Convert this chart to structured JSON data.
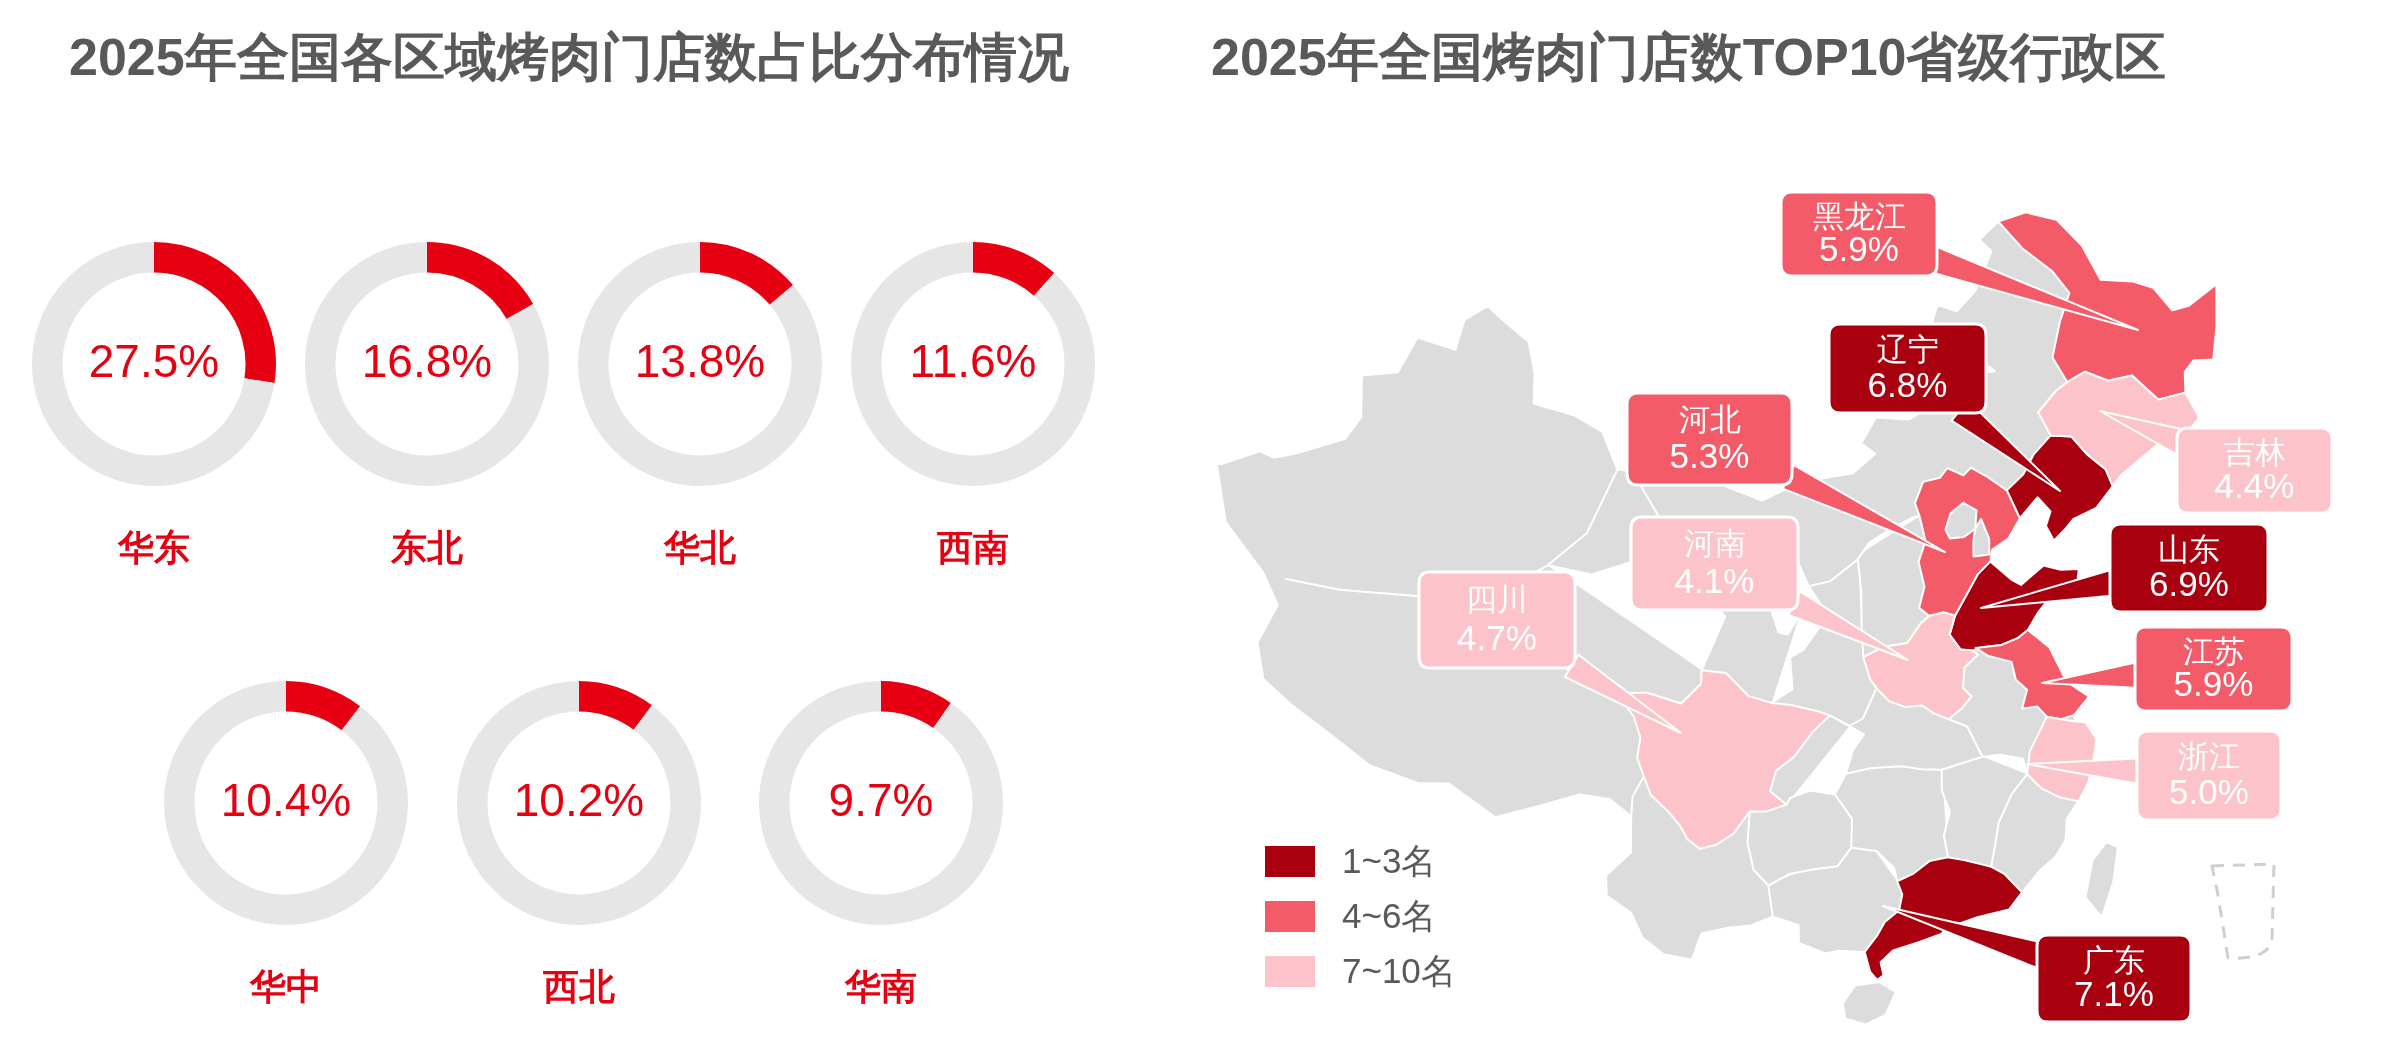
{
  "chart_data": [
    {
      "type": "other",
      "title": "2025年全国各区域烤肉门店数占比分布情况"
    },
    {
      "type": "donut",
      "title": "华东",
      "categories": [
        null,
        null
      ],
      "values": [
        27.5,
        72.5
      ],
      "colors": [
        "#e60012",
        "#e6e6e6"
      ],
      "value_labels": [
        "27.5%",
        null
      ]
    },
    {
      "type": "donut",
      "title": "东北",
      "categories": [
        null,
        null
      ],
      "values": [
        16.8,
        83.2
      ],
      "colors": [
        "#e60012",
        "#e6e6e6"
      ],
      "value_labels": [
        "16.8%",
        null
      ]
    },
    {
      "type": "donut",
      "title": "华北",
      "categories": [
        null,
        null
      ],
      "values": [
        13.8,
        86.2
      ],
      "colors": [
        "#e60012",
        "#e6e6e6"
      ],
      "value_labels": [
        "13.8%",
        null
      ]
    },
    {
      "type": "donut",
      "title": "西南",
      "categories": [
        null,
        null
      ],
      "values": [
        11.6,
        88.4
      ],
      "colors": [
        "#e60012",
        "#e6e6e6"
      ],
      "value_labels": [
        "11.6%",
        null
      ]
    },
    {
      "type": "donut",
      "title": "华中",
      "categories": [
        null,
        null
      ],
      "values": [
        10.4,
        89.6
      ],
      "colors": [
        "#e60012",
        "#e6e6e6"
      ],
      "value_labels": [
        "10.4%",
        null
      ]
    },
    {
      "type": "donut",
      "title": "西北",
      "categories": [
        null,
        null
      ],
      "values": [
        10.2,
        89.8
      ],
      "colors": [
        "#e60012",
        "#e6e6e6"
      ],
      "value_labels": [
        "10.2%",
        null
      ]
    },
    {
      "type": "donut",
      "title": "华南",
      "categories": [
        null,
        null
      ],
      "values": [
        9.7,
        90.3
      ],
      "colors": [
        "#e60012",
        "#e6e6e6"
      ],
      "value_labels": [
        "9.7%",
        null
      ]
    },
    {
      "type": "other",
      "title": "2025年全国烤肉门店数TOP10省级行政区",
      "legend": "bottom left",
      "categories": [
        "广东",
        "山东",
        "辽宁",
        "黑龙江",
        "江苏",
        "河北",
        "浙江",
        "四川",
        "吉林",
        "河南"
      ],
      "series": [
        {
          "name": "1~3名",
          "color": "#a8000f",
          "values": [
            7.1,
            6.9,
            6.8,
            null,
            null,
            null,
            null,
            null,
            null,
            null
          ],
          "value_labels": [
            "7.1%",
            "6.9%",
            "6.8%",
            null,
            null,
            null,
            null,
            null,
            null,
            null
          ]
        },
        {
          "name": "4~6名",
          "color": "#f45b69",
          "values": [
            null,
            null,
            null,
            5.9,
            5.9,
            5.3,
            null,
            null,
            null,
            null
          ],
          "value_labels": [
            null,
            null,
            null,
            "5.9%",
            "5.9%",
            "5.3%",
            null,
            null,
            null,
            null
          ]
        },
        {
          "name": "7~10名",
          "color": "#fcc4ca",
          "values": [
            null,
            null,
            null,
            null,
            null,
            null,
            5.0,
            4.7,
            4.4,
            4.1
          ],
          "value_labels": [
            null,
            null,
            null,
            null,
            null,
            null,
            "5.0%",
            "4.7%",
            "4.4%",
            "4.1%"
          ]
        }
      ]
    }
  ]
}
